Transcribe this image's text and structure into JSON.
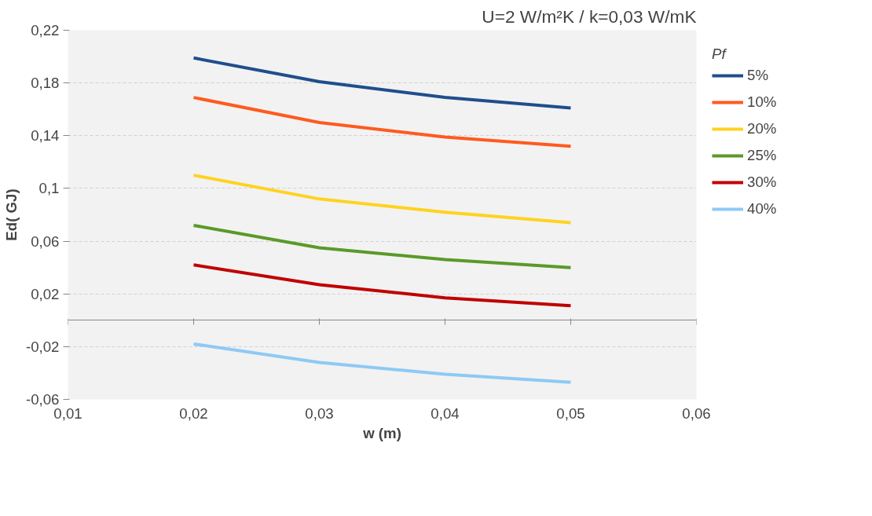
{
  "chart_data": {
    "type": "line",
    "title": "U=2 W/m²K / k=0,03 W/mK",
    "xlabel": "w (m)",
    "ylabel": "Ed( GJ)",
    "legend_title": "Pf",
    "x": [
      0.02,
      0.03,
      0.04,
      0.05
    ],
    "series": [
      {
        "name": "5%",
        "color": "#1f4e8c",
        "values": [
          0.199,
          0.181,
          0.169,
          0.161
        ]
      },
      {
        "name": "10%",
        "color": "#ff5a1f",
        "values": [
          0.169,
          0.15,
          0.139,
          0.132
        ]
      },
      {
        "name": "20%",
        "color": "#ffd21f",
        "values": [
          0.11,
          0.092,
          0.082,
          0.074
        ]
      },
      {
        "name": "25%",
        "color": "#5a9a28",
        "values": [
          0.072,
          0.055,
          0.046,
          0.04
        ]
      },
      {
        "name": "30%",
        "color": "#c00000",
        "values": [
          0.042,
          0.027,
          0.017,
          0.011
        ]
      },
      {
        "name": "40%",
        "color": "#8ec9f5",
        "values": [
          -0.018,
          -0.032,
          -0.041,
          -0.047
        ]
      }
    ],
    "xlim": [
      0.01,
      0.06
    ],
    "xticks": [
      {
        "value": 0.01,
        "label": "0,01"
      },
      {
        "value": 0.02,
        "label": "0,02"
      },
      {
        "value": 0.03,
        "label": "0,03"
      },
      {
        "value": 0.04,
        "label": "0,04"
      },
      {
        "value": 0.05,
        "label": "0,05"
      },
      {
        "value": 0.06,
        "label": "0,06"
      }
    ],
    "ylim": [
      -0.06,
      0.22
    ],
    "yticks": [
      {
        "value": -0.06,
        "label": "-0,06"
      },
      {
        "value": -0.02,
        "label": "-0,02"
      },
      {
        "value": 0.02,
        "label": "0,02"
      },
      {
        "value": 0.06,
        "label": "0,06"
      },
      {
        "value": 0.1,
        "label": "0,1"
      },
      {
        "value": 0.14,
        "label": "0,14"
      },
      {
        "value": 0.18,
        "label": "0,18"
      },
      {
        "value": 0.22,
        "label": "0,22"
      }
    ],
    "grid": "y",
    "legend": "right",
    "marker": "none",
    "line_style": "solid"
  }
}
